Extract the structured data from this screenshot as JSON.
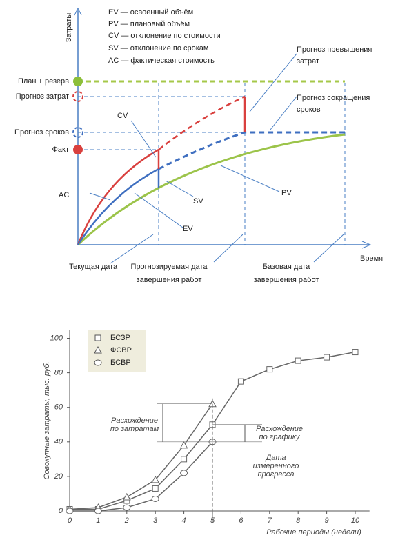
{
  "diagram": {
    "legend": [
      "EV — освоенный объём",
      "PV — плановый объём",
      "CV — отклонение по стоимости",
      "SV — отклонение по срокам",
      "AC — фактическая стоимость"
    ],
    "y_axis_label": "Затраты",
    "x_axis_label": "Время",
    "levels": [
      "План + резерв",
      "Прогноз затрат",
      "Прогноз сроков",
      "Факт"
    ],
    "curve_labels": {
      "cv": "CV",
      "ac": "AC",
      "sv": "SV",
      "ev": "EV",
      "pv": "PV"
    },
    "forecast_overrun": [
      "Прогноз превышения",
      "затрат"
    ],
    "forecast_reduction": [
      "Прогноз сокращения",
      "сроков"
    ],
    "current_date": "Текущая дата",
    "forecast_date": [
      "Прогнозируемая дата",
      "завершения работ"
    ],
    "base_date": [
      "Базовая дата",
      "завершения работ"
    ]
  },
  "chart_data": {
    "type": "line",
    "x": [
      0,
      1,
      2,
      3,
      4,
      5,
      6,
      7,
      8,
      9,
      10
    ],
    "series": [
      {
        "name": "БСЗР",
        "marker": "square",
        "color": "#666666",
        "values": [
          1,
          1,
          6,
          13,
          30,
          50,
          75,
          82,
          87,
          89,
          92
        ]
      },
      {
        "name": "ФСВР",
        "marker": "triangle",
        "color": "#666666",
        "values": [
          1,
          2,
          8,
          18,
          38,
          62,
          null,
          null,
          null,
          null,
          null
        ]
      },
      {
        "name": "БСВР",
        "marker": "circle",
        "color": "#666666",
        "values": [
          0,
          0,
          2,
          7,
          22,
          40,
          null,
          null,
          null,
          null,
          null
        ]
      }
    ],
    "xlim": [
      0,
      10.5
    ],
    "ylim": [
      0,
      105
    ],
    "xticks": [
      0,
      1,
      2,
      3,
      4,
      5,
      6,
      7,
      8,
      9,
      10
    ],
    "yticks": [
      0,
      20,
      40,
      60,
      80,
      100
    ],
    "y_label": "Совокупные затраты, тыс. руб.",
    "x_label": "Рабочие периоды (недели)",
    "annotations": {
      "cost_gap": [
        "Расхождение",
        "по затратам"
      ],
      "schedule_gap": [
        "Расхождение",
        "по графику"
      ],
      "status_date": [
        "Дата",
        "измеренного",
        "прогресса"
      ]
    }
  }
}
